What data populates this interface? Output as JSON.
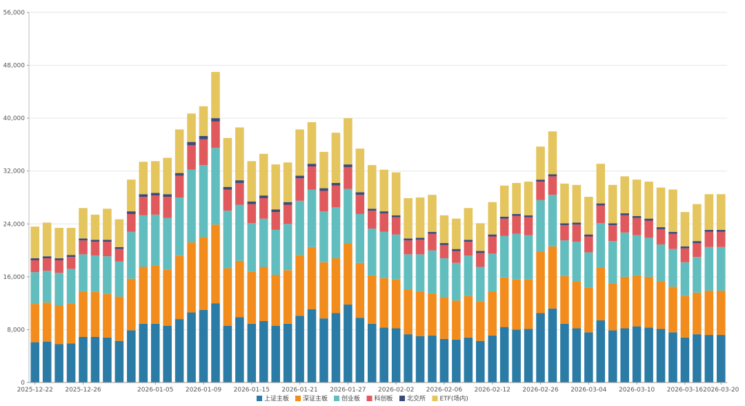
{
  "chart_data": {
    "type": "bar",
    "stacked": true,
    "title": "",
    "xlabel": "",
    "ylabel": "",
    "ylim": [
      0,
      56000
    ],
    "y_ticks": [
      0,
      8000,
      16000,
      24000,
      32000,
      40000,
      48000,
      56000
    ],
    "y_tick_labels": [
      "0",
      "8,000",
      "16,000",
      "24,000",
      "32,000",
      "40,000",
      "48,000",
      "56,000"
    ],
    "grid": true,
    "legend_position": "bottom-center",
    "x_tick_labels": [
      "2025-12-22",
      "2025-12-26",
      "2026-01-05",
      "2026-01-09",
      "2026-01-15",
      "2026-01-21",
      "2026-01-27",
      "2026-02-02",
      "2026-02-06",
      "2026-02-12",
      "2026-02-26",
      "2026-03-04",
      "2026-03-10",
      "2026-03-16",
      "2026-03-20"
    ],
    "x_tick_indices": [
      0,
      4,
      10,
      14,
      18,
      22,
      26,
      30,
      34,
      38,
      42,
      46,
      50,
      54,
      57
    ],
    "bar_count": 58,
    "series": [
      {
        "name": "上证主板",
        "color": "#2a7ba6",
        "values": [
          6100,
          6200,
          5800,
          5900,
          6900,
          6900,
          6800,
          6300,
          7900,
          8900,
          8900,
          8600,
          9600,
          10600,
          11000,
          12000,
          8600,
          9900,
          8900,
          9300,
          8600,
          8900,
          10100,
          11100,
          9700,
          10500,
          11800,
          9800,
          8900,
          8300,
          8200,
          7300,
          7000,
          7100,
          6600,
          6500,
          6800,
          6300,
          7100,
          8400,
          8000,
          8100,
          10500,
          11200,
          8900,
          8200,
          7600,
          9400,
          7900,
          8200,
          8500,
          8300,
          8100,
          7600,
          6800,
          7300,
          7200,
          7200
        ]
      },
      {
        "name": "深证主板",
        "color": "#f28c1c",
        "values": [
          5800,
          5900,
          5900,
          6100,
          6900,
          6800,
          6600,
          6700,
          7800,
          8600,
          8800,
          8500,
          9600,
          10600,
          11000,
          11900,
          8700,
          8500,
          7900,
          8200,
          7700,
          8100,
          9200,
          9400,
          8500,
          8300,
          9300,
          8300,
          7300,
          7500,
          7400,
          6800,
          6800,
          6400,
          6300,
          5900,
          6300,
          6000,
          6700,
          7500,
          7600,
          7500,
          9300,
          9400,
          7200,
          7100,
          6800,
          8000,
          7100,
          7800,
          7700,
          7700,
          7200,
          6900,
          6300,
          6300,
          6700,
          6700
        ]
      },
      {
        "name": "创业板",
        "color": "#62bebe",
        "values": [
          4800,
          4800,
          4900,
          5200,
          5600,
          5500,
          5700,
          5300,
          7100,
          7800,
          7700,
          7800,
          8800,
          11000,
          10900,
          11600,
          8700,
          8500,
          7300,
          7300,
          6800,
          7000,
          8200,
          8700,
          7700,
          7700,
          8200,
          7400,
          7100,
          7000,
          6800,
          5300,
          5600,
          6500,
          5900,
          5700,
          6100,
          5200,
          5700,
          6300,
          6900,
          6700,
          7800,
          7800,
          5400,
          6000,
          5300,
          6700,
          6400,
          6700,
          6100,
          5900,
          5600,
          5700,
          5100,
          5400,
          6600,
          6600
        ]
      },
      {
        "name": "科创板",
        "color": "#e05a5d",
        "values": [
          1800,
          1900,
          1900,
          1800,
          2100,
          2100,
          2200,
          1900,
          2700,
          2800,
          2900,
          3200,
          3300,
          3700,
          3900,
          4000,
          3200,
          3300,
          2900,
          3100,
          2700,
          2900,
          3400,
          3500,
          3100,
          3300,
          3300,
          2900,
          2700,
          2800,
          2600,
          2100,
          2200,
          2500,
          2000,
          1800,
          2100,
          2100,
          2600,
          2600,
          2700,
          2700,
          2800,
          2800,
          2300,
          2600,
          2400,
          2700,
          2400,
          2600,
          2600,
          2600,
          2300,
          2300,
          2100,
          2100,
          2300,
          2300
        ]
      },
      {
        "name": "北交所",
        "color": "#3c4a78",
        "values": [
          300,
          300,
          300,
          300,
          300,
          300,
          300,
          300,
          400,
          400,
          400,
          400,
          400,
          500,
          500,
          500,
          400,
          400,
          400,
          400,
          400,
          400,
          400,
          400,
          400,
          400,
          400,
          400,
          300,
          300,
          300,
          300,
          300,
          300,
          300,
          300,
          300,
          300,
          300,
          300,
          300,
          300,
          300,
          300,
          300,
          300,
          300,
          300,
          300,
          300,
          300,
          300,
          300,
          300,
          300,
          300,
          300,
          300
        ]
      },
      {
        "name": "ETF(场内)",
        "color": "#e4c55e",
        "values": [
          4800,
          5100,
          4600,
          4100,
          4600,
          3800,
          4700,
          4200,
          4800,
          4900,
          4800,
          5500,
          6600,
          4300,
          4500,
          7000,
          7400,
          8000,
          6100,
          6300,
          6800,
          6000,
          7000,
          6300,
          5500,
          7600,
          7000,
          6600,
          6600,
          6300,
          6500,
          6100,
          6100,
          5600,
          4200,
          4600,
          4800,
          4200,
          4900,
          4700,
          4700,
          5100,
          5000,
          6500,
          6000,
          5700,
          5700,
          6000,
          5800,
          5600,
          5500,
          5600,
          6000,
          6400,
          5200,
          5600,
          5400,
          5400
        ]
      }
    ]
  }
}
